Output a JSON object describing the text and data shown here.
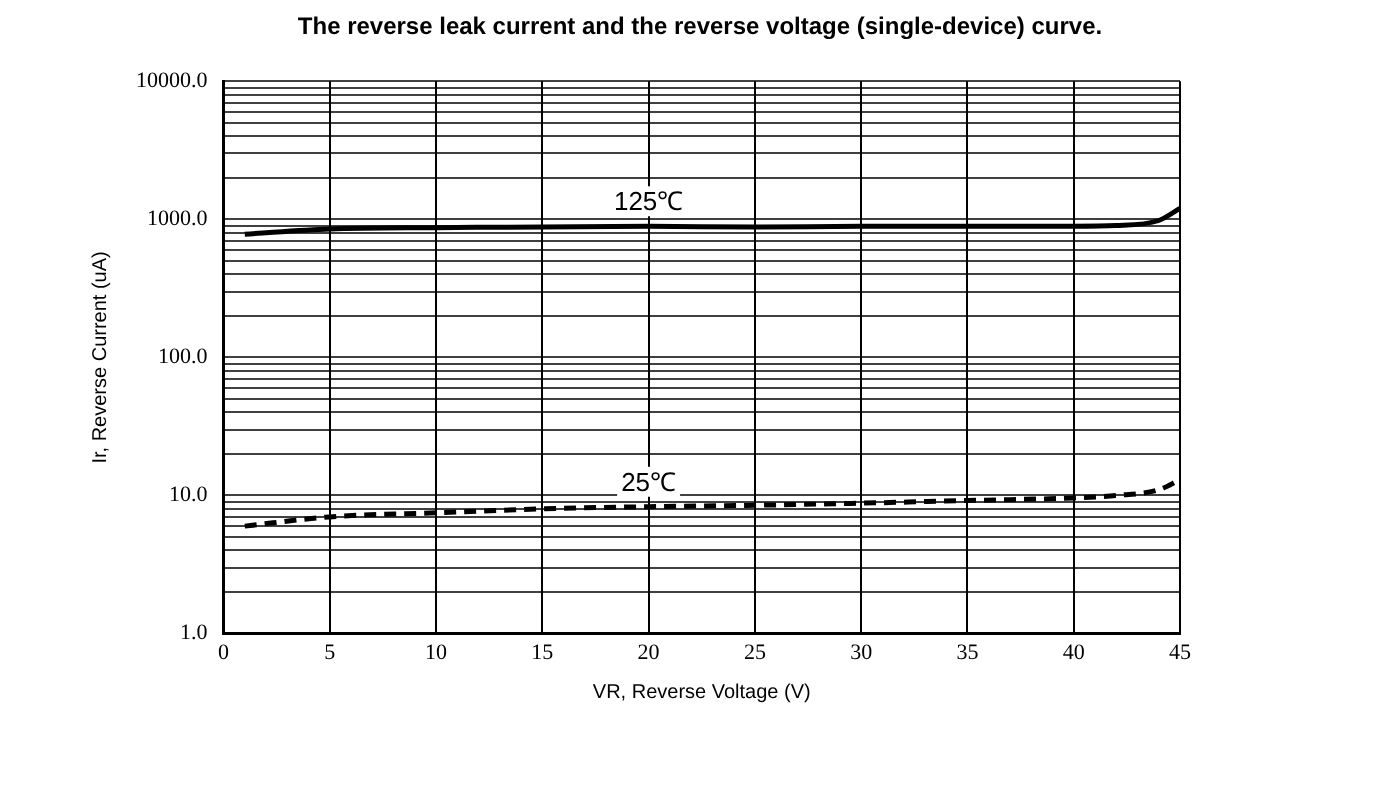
{
  "chart_data": {
    "type": "line",
    "title": "The reverse leak current and the reverse voltage (single-device) curve.",
    "xlabel": "VR, Reverse Voltage (V)",
    "ylabel": "Ir, Reverse Current (uA)",
    "log": "y",
    "grid": true,
    "legend": false,
    "marker": "none",
    "xlim": [
      0,
      45
    ],
    "xticks": [
      0,
      5,
      10,
      15,
      20,
      25,
      30,
      35,
      40,
      45
    ],
    "ylim": [
      1,
      10000
    ],
    "yticks": [
      {
        "value": 1,
        "label": "1.0"
      },
      {
        "value": 2,
        "label": null
      },
      {
        "value": 3,
        "label": null
      },
      {
        "value": 4,
        "label": null
      },
      {
        "value": 5,
        "label": null
      },
      {
        "value": 6,
        "label": null
      },
      {
        "value": 7,
        "label": null
      },
      {
        "value": 8,
        "label": null
      },
      {
        "value": 9,
        "label": null
      },
      {
        "value": 10,
        "label": "10.0"
      },
      {
        "value": 20,
        "label": null
      },
      {
        "value": 30,
        "label": null
      },
      {
        "value": 40,
        "label": null
      },
      {
        "value": 50,
        "label": null
      },
      {
        "value": 60,
        "label": null
      },
      {
        "value": 70,
        "label": null
      },
      {
        "value": 80,
        "label": null
      },
      {
        "value": 90,
        "label": null
      },
      {
        "value": 100,
        "label": "100.0"
      },
      {
        "value": 200,
        "label": null
      },
      {
        "value": 300,
        "label": null
      },
      {
        "value": 400,
        "label": null
      },
      {
        "value": 500,
        "label": null
      },
      {
        "value": 600,
        "label": null
      },
      {
        "value": 700,
        "label": null
      },
      {
        "value": 800,
        "label": null
      },
      {
        "value": 900,
        "label": null
      },
      {
        "value": 1000,
        "label": "1000.0"
      },
      {
        "value": 2000,
        "label": null
      },
      {
        "value": 3000,
        "label": null
      },
      {
        "value": 4000,
        "label": null
      },
      {
        "value": 5000,
        "label": null
      },
      {
        "value": 6000,
        "label": null
      },
      {
        "value": 7000,
        "label": null
      },
      {
        "value": 8000,
        "label": null
      },
      {
        "value": 9000,
        "label": null
      },
      {
        "value": 10000,
        "label": "10000.0"
      }
    ],
    "x": [
      1,
      5,
      10,
      15,
      20,
      25,
      30,
      35,
      40,
      42,
      44,
      45
    ],
    "series": [
      {
        "name": "125℃",
        "color": "#000000",
        "line_style": "solid",
        "values": [
          780,
          850,
          870,
          880,
          890,
          880,
          890,
          890,
          890,
          900,
          980,
          1200
        ]
      },
      {
        "name": "25℃",
        "color": "#000000",
        "line_style": "dashed",
        "values": [
          6.0,
          7.0,
          7.5,
          8.0,
          8.3,
          8.5,
          8.8,
          9.2,
          9.6,
          10.0,
          11,
          13
        ]
      }
    ]
  }
}
